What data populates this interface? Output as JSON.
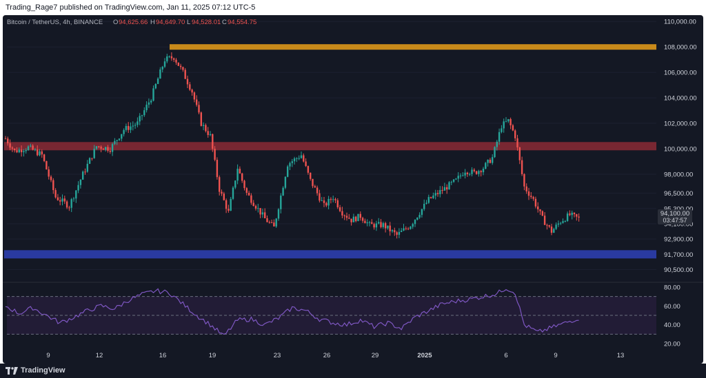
{
  "header": {
    "published_text": "Trading_Rage7 published on TradingView.com, Jan 11, 2025 07:12 UTC-5"
  },
  "footer": {
    "brand": "TradingView"
  },
  "legend": {
    "symbol": "Bitcoin / TetherUS, 4h, BINANCE",
    "o_label": "O",
    "o_value": "94,625.66",
    "h_label": "H",
    "h_value": "94,649.70",
    "l_label": "L",
    "l_value": "94,528.01",
    "c_label": "C",
    "c_value": "94,554.75"
  },
  "countdown": "03:47:57",
  "colors": {
    "up": "#26a69a",
    "down": "#ef5350",
    "resistance_top": "#c98a1a",
    "resistance_mid": "#8a2a35",
    "support": "#2a3aa0",
    "rsi_line": "#7e57c2"
  },
  "chart_data": [
    {
      "type": "candlestick",
      "ylim": [
        89500,
        110500
      ],
      "y_ticks": [
        "110,000.00",
        "108,000.00",
        "106,000.00",
        "104,000.00",
        "102,000.00",
        "100,000.00",
        "98,000.00",
        "96,500.00",
        "95,300.00",
        "94,100.00",
        "92,900.00",
        "91,700.00",
        "90,500.00"
      ],
      "x_ticks": [
        "9",
        "12",
        "16",
        "19",
        "23",
        "26",
        "29",
        "2025",
        "6",
        "9",
        "13"
      ],
      "levels": [
        {
          "name": "resistance",
          "value": 108000
        },
        {
          "name": "resistance",
          "value": 100200
        },
        {
          "name": "support",
          "value": 91700
        }
      ],
      "close_path": [
        [
          0,
          100800
        ],
        [
          4,
          99800
        ],
        [
          10,
          100100
        ],
        [
          16,
          99500
        ],
        [
          22,
          96200
        ],
        [
          28,
          95500
        ],
        [
          34,
          98000
        ],
        [
          40,
          100200
        ],
        [
          46,
          100000
        ],
        [
          52,
          101500
        ],
        [
          58,
          102000
        ],
        [
          64,
          104000
        ],
        [
          70,
          107000
        ],
        [
          74,
          107200
        ],
        [
          78,
          106000
        ],
        [
          82,
          104500
        ],
        [
          86,
          102000
        ],
        [
          90,
          101000
        ],
        [
          94,
          96800
        ],
        [
          98,
          95000
        ],
        [
          102,
          98500
        ],
        [
          106,
          96500
        ],
        [
          110,
          95500
        ],
        [
          114,
          94500
        ],
        [
          118,
          93800
        ],
        [
          124,
          98800
        ],
        [
          130,
          99500
        ],
        [
          134,
          97500
        ],
        [
          140,
          95500
        ],
        [
          144,
          96200
        ],
        [
          148,
          95000
        ],
        [
          152,
          94400
        ],
        [
          156,
          94700
        ],
        [
          160,
          94000
        ],
        [
          166,
          94000
        ],
        [
          172,
          93200
        ],
        [
          178,
          94000
        ],
        [
          182,
          95000
        ],
        [
          186,
          96000
        ],
        [
          190,
          96500
        ],
        [
          194,
          97000
        ],
        [
          198,
          97500
        ],
        [
          202,
          98300
        ],
        [
          206,
          98100
        ],
        [
          210,
          98500
        ],
        [
          214,
          99300
        ],
        [
          218,
          101800
        ],
        [
          221,
          102200
        ],
        [
          224,
          101000
        ],
        [
          228,
          97000
        ],
        [
          232,
          96000
        ],
        [
          236,
          94500
        ],
        [
          240,
          93500
        ],
        [
          244,
          94300
        ],
        [
          248,
          94800
        ],
        [
          252,
          94500
        ]
      ]
    },
    {
      "type": "line",
      "name": "RSI",
      "ylim": [
        15,
        85
      ],
      "y_ticks": [
        "80.00",
        "60.00",
        "40.00",
        "20.00"
      ],
      "bands": [
        70,
        50,
        30
      ],
      "rsi_path": [
        [
          0,
          60
        ],
        [
          6,
          52
        ],
        [
          12,
          58
        ],
        [
          18,
          50
        ],
        [
          24,
          42
        ],
        [
          30,
          48
        ],
        [
          36,
          55
        ],
        [
          42,
          60
        ],
        [
          48,
          57
        ],
        [
          54,
          66
        ],
        [
          60,
          72
        ],
        [
          66,
          76
        ],
        [
          72,
          74
        ],
        [
          78,
          62
        ],
        [
          84,
          50
        ],
        [
          90,
          40
        ],
        [
          96,
          28
        ],
        [
          102,
          45
        ],
        [
          108,
          46
        ],
        [
          114,
          40
        ],
        [
          120,
          47
        ],
        [
          126,
          58
        ],
        [
          132,
          55
        ],
        [
          138,
          46
        ],
        [
          144,
          42
        ],
        [
          150,
          40
        ],
        [
          156,
          45
        ],
        [
          162,
          38
        ],
        [
          168,
          42
        ],
        [
          174,
          36
        ],
        [
          180,
          48
        ],
        [
          186,
          55
        ],
        [
          192,
          62
        ],
        [
          198,
          65
        ],
        [
          204,
          67
        ],
        [
          210,
          70
        ],
        [
          216,
          73
        ],
        [
          220,
          79
        ],
        [
          224,
          74
        ],
        [
          228,
          40
        ],
        [
          234,
          32
        ],
        [
          240,
          37
        ],
        [
          246,
          42
        ],
        [
          252,
          47
        ]
      ]
    }
  ]
}
